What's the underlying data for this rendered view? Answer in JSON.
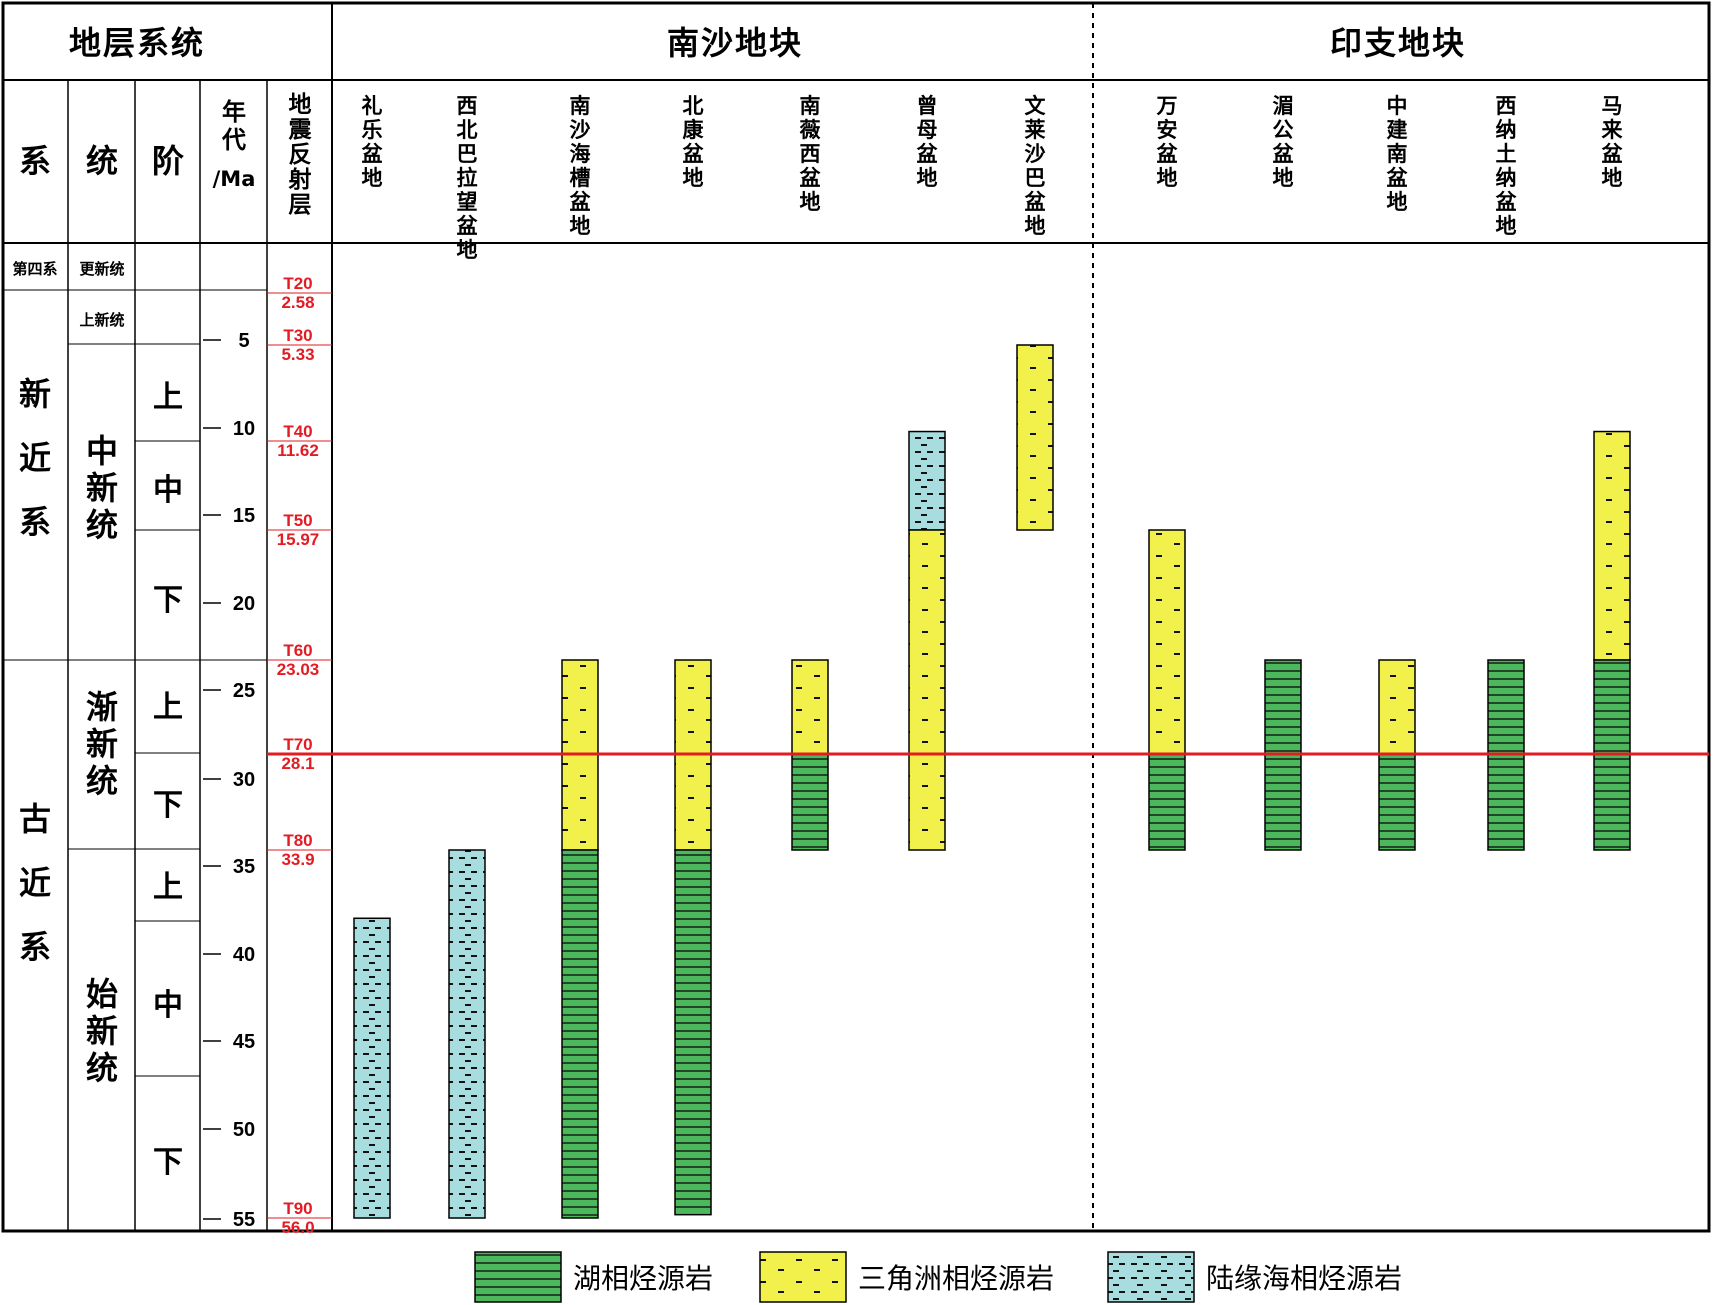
{
  "header": {
    "stratigraphy": "地层系统",
    "nansha_block": "南沙地块",
    "indochina_block": "印支地块"
  },
  "columns": {
    "system": "系",
    "series": "统",
    "stage": "阶",
    "age": "年代/Ma",
    "reflector": "地震反射层"
  },
  "systems": [
    {
      "label": "第四系"
    },
    {
      "label": "新近系"
    },
    {
      "label": "古近系"
    }
  ],
  "series": [
    {
      "label": "更新统"
    },
    {
      "label": "上新统"
    },
    {
      "label": "中新统"
    },
    {
      "label": "渐新统"
    },
    {
      "label": "始新统"
    }
  ],
  "stages": [
    {
      "label": "上"
    },
    {
      "label": "中"
    },
    {
      "label": "下"
    },
    {
      "label": "上"
    },
    {
      "label": "下"
    },
    {
      "label": "上"
    },
    {
      "label": "中"
    },
    {
      "label": "下"
    }
  ],
  "age_ticks": [
    "5",
    "10",
    "15",
    "20",
    "25",
    "30",
    "35",
    "40",
    "45",
    "50",
    "55"
  ],
  "reflectors": [
    {
      "name": "T20",
      "age": "2.58"
    },
    {
      "name": "T30",
      "age": "5.33"
    },
    {
      "name": "T40",
      "age": "11.62"
    },
    {
      "name": "T50",
      "age": "15.97"
    },
    {
      "name": "T60",
      "age": "23.03"
    },
    {
      "name": "T70",
      "age": "28.1"
    },
    {
      "name": "T80",
      "age": "33.9"
    },
    {
      "name": "T90",
      "age": "56.0"
    }
  ],
  "basins": [
    {
      "name": "礼乐盆地",
      "block": "南沙地块",
      "intervals": [
        {
          "from": 38.0,
          "to": 56.0,
          "facies": "marine"
        }
      ]
    },
    {
      "name": "西北巴拉望盆地",
      "block": "南沙地块",
      "intervals": [
        {
          "from": 33.9,
          "to": 56.0,
          "facies": "marine"
        }
      ]
    },
    {
      "name": "南沙海槽盆地",
      "block": "南沙地块",
      "intervals": [
        {
          "from": 23.03,
          "to": 33.9,
          "facies": "delta"
        },
        {
          "from": 33.9,
          "to": 56.0,
          "facies": "lacustrine"
        }
      ]
    },
    {
      "name": "北康盆地",
      "block": "南沙地块",
      "intervals": [
        {
          "from": 23.03,
          "to": 33.9,
          "facies": "delta"
        },
        {
          "from": 33.9,
          "to": 55.8,
          "facies": "lacustrine"
        }
      ]
    },
    {
      "name": "南薇西盆地",
      "block": "南沙地块",
      "intervals": [
        {
          "from": 23.03,
          "to": 28.1,
          "facies": "delta"
        },
        {
          "from": 28.1,
          "to": 33.9,
          "facies": "lacustrine"
        }
      ]
    },
    {
      "name": "曾母盆地",
      "block": "南沙地块",
      "intervals": [
        {
          "from": 11.0,
          "to": 15.97,
          "facies": "marine"
        },
        {
          "from": 15.97,
          "to": 33.9,
          "facies": "delta"
        }
      ]
    },
    {
      "name": "文莱-沙巴盆地",
      "block": "南沙地块",
      "intervals": [
        {
          "from": 5.33,
          "to": 15.97,
          "facies": "delta"
        }
      ]
    },
    {
      "name": "万安盆地",
      "block": "印支地块",
      "intervals": [
        {
          "from": 15.97,
          "to": 28.1,
          "facies": "delta"
        },
        {
          "from": 28.1,
          "to": 33.9,
          "facies": "lacustrine"
        }
      ]
    },
    {
      "name": "湄公盆地",
      "block": "印支地块",
      "intervals": [
        {
          "from": 23.03,
          "to": 33.9,
          "facies": "lacustrine"
        }
      ]
    },
    {
      "name": "中建南盆地",
      "block": "印支地块",
      "intervals": [
        {
          "from": 23.03,
          "to": 28.1,
          "facies": "delta"
        },
        {
          "from": 28.1,
          "to": 33.9,
          "facies": "lacustrine"
        }
      ]
    },
    {
      "name": "西纳土纳盆地",
      "block": "印支地块",
      "intervals": [
        {
          "from": 23.03,
          "to": 33.9,
          "facies": "lacustrine"
        }
      ]
    },
    {
      "name": "马来盆地",
      "block": "印支地块",
      "intervals": [
        {
          "from": 11.0,
          "to": 23.03,
          "facies": "delta"
        },
        {
          "from": 23.03,
          "to": 33.9,
          "facies": "lacustrine"
        }
      ]
    }
  ],
  "highlight_line_age": 28.1,
  "legend": [
    {
      "key": "lacustrine",
      "label": "湖相烃源岩",
      "color": "#4cb85c"
    },
    {
      "key": "delta",
      "label": "三角洲相烃源岩",
      "color": "#f2f04a"
    },
    {
      "key": "marine",
      "label": "陆缘海相烃源岩",
      "color": "#a8dde0"
    }
  ],
  "colors": {
    "lacustrine": "#4cb85c",
    "delta": "#f2f04a",
    "marine": "#a8dde0",
    "highlight": "#e31b23",
    "reflector_text": "#e31b23"
  }
}
